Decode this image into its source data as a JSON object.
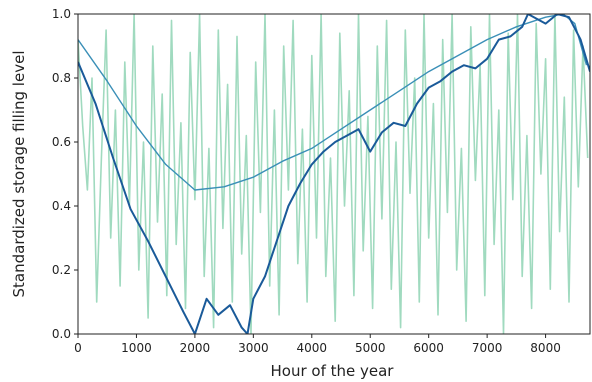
{
  "chart_data": {
    "type": "line",
    "title": "",
    "xlabel": "Hour of the year",
    "ylabel": "Standardized storage filling level",
    "xlim": [
      0,
      8760
    ],
    "ylim": [
      0,
      1
    ],
    "x_ticks": [
      0,
      1000,
      2000,
      3000,
      4000,
      5000,
      6000,
      7000,
      8000
    ],
    "y_ticks": [
      0.0,
      0.2,
      0.4,
      0.6,
      0.8,
      1.0
    ],
    "x_tick_labels": [
      "0",
      "1000",
      "2000",
      "3000",
      "4000",
      "5000",
      "6000",
      "7000",
      "8000"
    ],
    "y_tick_labels": [
      "0.0",
      "0.2",
      "0.4",
      "0.6",
      "0.8",
      "1.0"
    ],
    "grid": false,
    "legend": "none",
    "series": [
      {
        "color": "#8fd3b4",
        "x": [
          0,
          80,
          160,
          240,
          320,
          400,
          480,
          560,
          640,
          720,
          800,
          880,
          960,
          1040,
          1120,
          1200,
          1280,
          1360,
          1440,
          1520,
          1600,
          1680,
          1760,
          1840,
          1920,
          2000,
          2080,
          2160,
          2240,
          2320,
          2400,
          2480,
          2560,
          2640,
          2720,
          2800,
          2880,
          2960,
          3040,
          3120,
          3200,
          3280,
          3360,
          3440,
          3520,
          3600,
          3680,
          3760,
          3840,
          3920,
          4000,
          4080,
          4160,
          4240,
          4320,
          4400,
          4480,
          4560,
          4640,
          4720,
          4800,
          4880,
          4960,
          5040,
          5120,
          5200,
          5280,
          5360,
          5440,
          5520,
          5600,
          5680,
          5760,
          5840,
          5920,
          6000,
          6080,
          6160,
          6240,
          6320,
          6400,
          6480,
          6560,
          6640,
          6720,
          6800,
          6880,
          6960,
          7040,
          7120,
          7200,
          7280,
          7360,
          7440,
          7520,
          7600,
          7680,
          7760,
          7840,
          7920,
          8000,
          8080,
          8160,
          8240,
          8320,
          8400,
          8480,
          8560,
          8640,
          8720
        ],
        "y": [
          0.92,
          0.65,
          0.45,
          0.8,
          0.1,
          0.55,
          0.95,
          0.3,
          0.7,
          0.15,
          0.85,
          0.4,
          1.0,
          0.2,
          0.6,
          0.05,
          0.9,
          0.35,
          0.75,
          0.12,
          0.98,
          0.28,
          0.66,
          0.08,
          0.88,
          0.42,
          1.0,
          0.18,
          0.58,
          0.02,
          0.95,
          0.33,
          0.78,
          0.1,
          0.93,
          0.25,
          0.62,
          0.0,
          0.85,
          0.38,
          1.0,
          0.15,
          0.7,
          0.06,
          0.9,
          0.45,
          0.98,
          0.22,
          0.64,
          0.1,
          0.87,
          0.3,
          1.0,
          0.18,
          0.55,
          0.04,
          0.94,
          0.4,
          0.76,
          0.12,
          1.0,
          0.26,
          0.68,
          0.08,
          0.9,
          0.36,
          0.98,
          0.14,
          0.6,
          0.02,
          0.95,
          0.44,
          0.8,
          0.1,
          1.0,
          0.3,
          0.72,
          0.06,
          0.92,
          0.38,
          1.0,
          0.2,
          0.58,
          0.04,
          0.96,
          0.48,
          0.84,
          0.12,
          1.0,
          0.28,
          0.7,
          0.0,
          0.94,
          0.42,
          1.0,
          0.18,
          0.62,
          0.08,
          0.97,
          0.5,
          0.86,
          0.14,
          1.0,
          0.32,
          0.74,
          0.1,
          0.95,
          0.46,
          0.9,
          0.55
        ]
      },
      {
        "color": "#3a8fb7",
        "x": [
          0,
          500,
          1000,
          1500,
          2000,
          2500,
          3000,
          3500,
          4000,
          4500,
          5000,
          5500,
          6000,
          6500,
          7000,
          7500,
          8000,
          8300,
          8500,
          8700
        ],
        "y": [
          0.92,
          0.79,
          0.65,
          0.53,
          0.45,
          0.46,
          0.49,
          0.54,
          0.58,
          0.64,
          0.7,
          0.76,
          0.82,
          0.87,
          0.92,
          0.96,
          0.99,
          1.0,
          0.97,
          0.84
        ]
      },
      {
        "color": "#1a5a99",
        "x": [
          0,
          300,
          600,
          900,
          1200,
          1500,
          1800,
          2000,
          2200,
          2400,
          2600,
          2800,
          2900,
          3000,
          3200,
          3400,
          3600,
          3800,
          4000,
          4200,
          4400,
          4600,
          4800,
          5000,
          5200,
          5400,
          5600,
          5800,
          6000,
          6200,
          6400,
          6600,
          6800,
          7000,
          7200,
          7400,
          7600,
          7700,
          7800,
          8000,
          8200,
          8400,
          8600,
          8760
        ],
        "y": [
          0.85,
          0.72,
          0.55,
          0.39,
          0.29,
          0.18,
          0.07,
          0.0,
          0.11,
          0.06,
          0.09,
          0.02,
          0.0,
          0.11,
          0.18,
          0.29,
          0.4,
          0.47,
          0.53,
          0.57,
          0.6,
          0.62,
          0.64,
          0.57,
          0.63,
          0.66,
          0.65,
          0.72,
          0.77,
          0.79,
          0.82,
          0.84,
          0.83,
          0.86,
          0.92,
          0.93,
          0.96,
          1.0,
          0.99,
          0.97,
          1.0,
          0.99,
          0.92,
          0.82
        ]
      }
    ]
  }
}
